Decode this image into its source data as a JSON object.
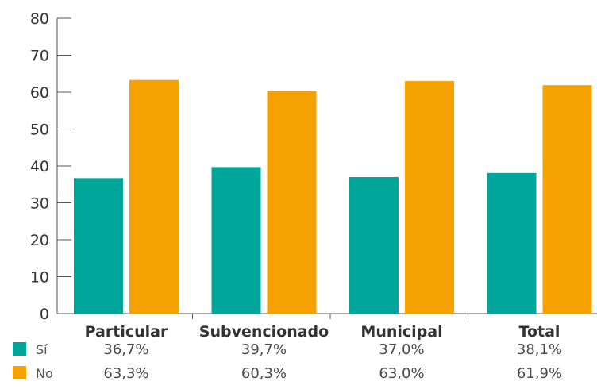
{
  "chart_data": {
    "type": "bar",
    "categories": [
      "Particular",
      "Subvencionado",
      "Municipal",
      "Total"
    ],
    "series": [
      {
        "name": "Sí",
        "values": [
          36.7,
          39.7,
          37.0,
          38.1
        ],
        "labels": [
          "36,7%",
          "39,7%",
          "37,0%",
          "38,1%"
        ],
        "color": "#00A699"
      },
      {
        "name": "No",
        "values": [
          63.3,
          60.3,
          63.0,
          61.9
        ],
        "labels": [
          "63,3%",
          "60,3%",
          "63,0%",
          "61,9%"
        ],
        "color": "#F5A200"
      }
    ],
    "yticks": [
      "0",
      "10",
      "20",
      "30",
      "40",
      "50",
      "60",
      "70",
      "80"
    ],
    "ylim": [
      0,
      80
    ],
    "grid": false,
    "legend": "bottom-left, as data table rows",
    "title": "",
    "xlabel": "",
    "ylabel": ""
  }
}
